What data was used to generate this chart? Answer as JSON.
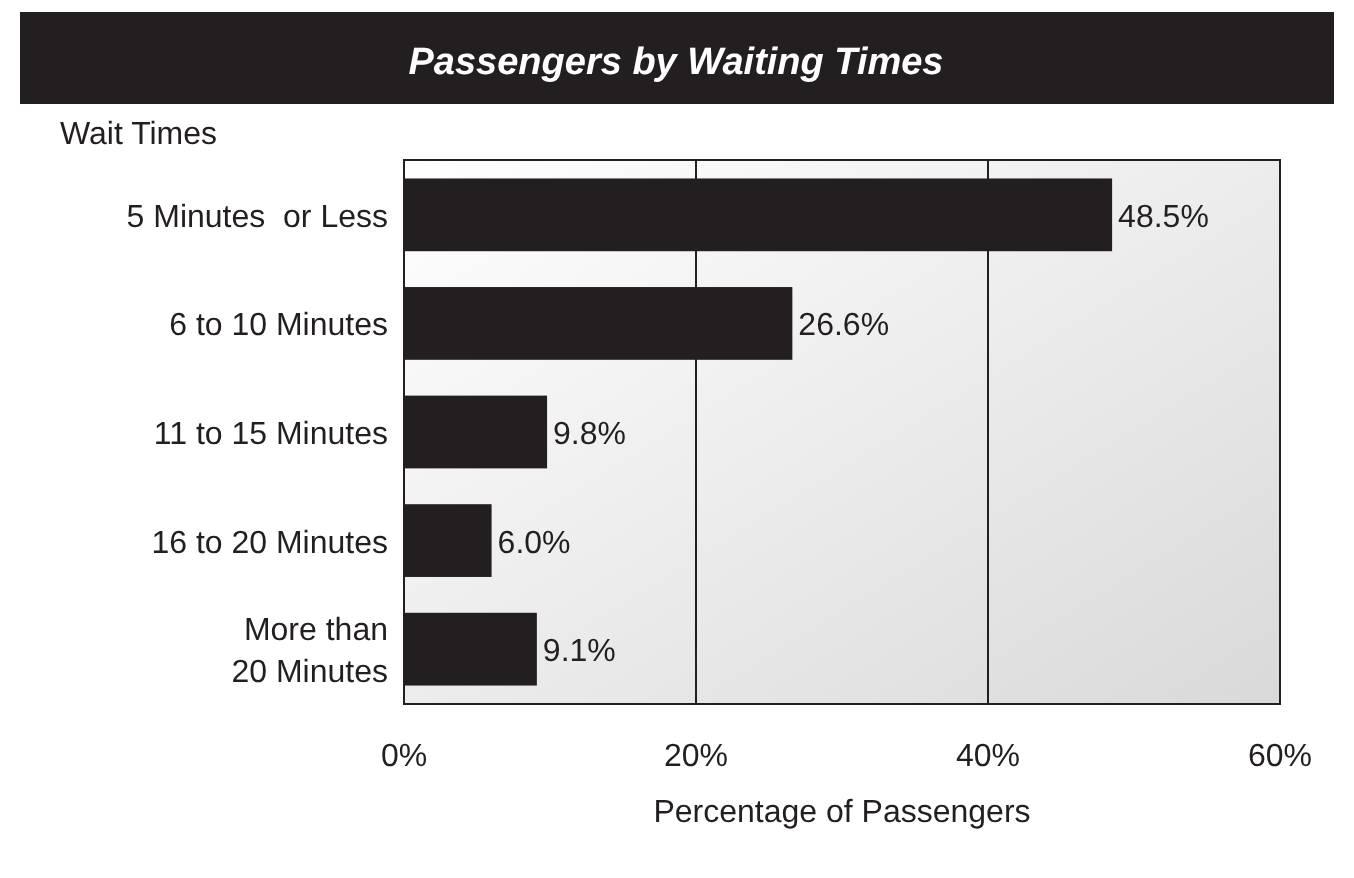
{
  "chart_data": {
    "type": "bar",
    "orientation": "horizontal",
    "title": "Passengers by Waiting Times",
    "ylabel": "Wait Times",
    "xlabel": "Percentage of Passengers",
    "categories": [
      "5 Minutes  or Less",
      "6 to 10 Minutes",
      "11 to 15 Minutes",
      "16 to 20 Minutes",
      "More than\n20 Minutes"
    ],
    "values": [
      48.5,
      26.6,
      9.8,
      6.0,
      9.1
    ],
    "value_labels": [
      "48.5%",
      "26.6%",
      "9.8%",
      "6.0%",
      "9.1%"
    ],
    "color": "#231f20",
    "xlim": [
      0,
      60
    ],
    "xticks": [
      {
        "value": 0,
        "label": "0%"
      },
      {
        "value": 20,
        "label": "20%"
      },
      {
        "value": 40,
        "label": "40%"
      },
      {
        "value": 60,
        "label": "60%"
      }
    ],
    "grid": "x"
  }
}
